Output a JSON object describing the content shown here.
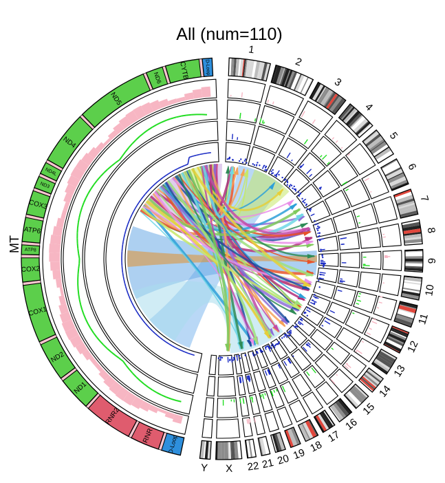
{
  "title": "All (num=110)",
  "mt_label": "MT",
  "chromosomes": [
    {
      "name": "1",
      "label": "1"
    },
    {
      "name": "2",
      "label": "2"
    },
    {
      "name": "3",
      "label": "3"
    },
    {
      "name": "4",
      "label": "4"
    },
    {
      "name": "5",
      "label": "5"
    },
    {
      "name": "6",
      "label": "6"
    },
    {
      "name": "7",
      "label": "7"
    },
    {
      "name": "8",
      "label": "8"
    },
    {
      "name": "9",
      "label": "9"
    },
    {
      "name": "10",
      "label": "10"
    },
    {
      "name": "11",
      "label": "11"
    },
    {
      "name": "12",
      "label": "12"
    },
    {
      "name": "13",
      "label": "13"
    },
    {
      "name": "14",
      "label": "14"
    },
    {
      "name": "15",
      "label": "15"
    },
    {
      "name": "16",
      "label": "16"
    },
    {
      "name": "17",
      "label": "17"
    },
    {
      "name": "18",
      "label": "18"
    },
    {
      "name": "19",
      "label": "19"
    },
    {
      "name": "20",
      "label": "20"
    },
    {
      "name": "21",
      "label": "21"
    },
    {
      "name": "22",
      "label": "22"
    },
    {
      "name": "X",
      "label": "X"
    },
    {
      "name": "Y",
      "label": "Y"
    }
  ],
  "mt_genes": [
    {
      "name": "D-Loop",
      "color": "#2e8fdc"
    },
    {
      "name": "RNR",
      "color": "#df5c6e"
    },
    {
      "name": "RNR2",
      "color": "#df5c6e"
    },
    {
      "name": "ND1",
      "color": "#5ccf4b"
    },
    {
      "name": "ND2",
      "color": "#5ccf4b"
    },
    {
      "name": "COX1",
      "color": "#5ccf4b"
    },
    {
      "name": "COX2",
      "color": "#5ccf4b"
    },
    {
      "name": "ATP8",
      "color": "#5ccf4b"
    },
    {
      "name": "ATP6",
      "color": "#5ccf4b"
    },
    {
      "name": "COX3",
      "color": "#5ccf4b"
    },
    {
      "name": "ND3",
      "color": "#5ccf4b"
    },
    {
      "name": "ND4L",
      "color": "#5ccf4b"
    },
    {
      "name": "ND4",
      "color": "#5ccf4b"
    },
    {
      "name": "ND5",
      "color": "#5ccf4b"
    },
    {
      "name": "ND6",
      "color": "#5ccf4b"
    },
    {
      "name": "CYTB",
      "color": "#5ccf4b"
    },
    {
      "name": "D-Loop",
      "color": "#2e8fdc"
    }
  ],
  "colors": {
    "track_pink": "#f7b6c3",
    "track_green": "#22dd22",
    "track_blue": "#1a2bc4",
    "gap_pink": "#f9c6cf",
    "link_palette": [
      "#e8532a",
      "#f4a259",
      "#c6e86a",
      "#e98ee8",
      "#b22e7a",
      "#8f6fd8",
      "#2ea0d8",
      "#6fd6e6",
      "#2f8b57",
      "#1f4fa0",
      "#7fc95b",
      "#e5cf3a",
      "#c24aa6",
      "#9fe07c"
    ]
  }
}
